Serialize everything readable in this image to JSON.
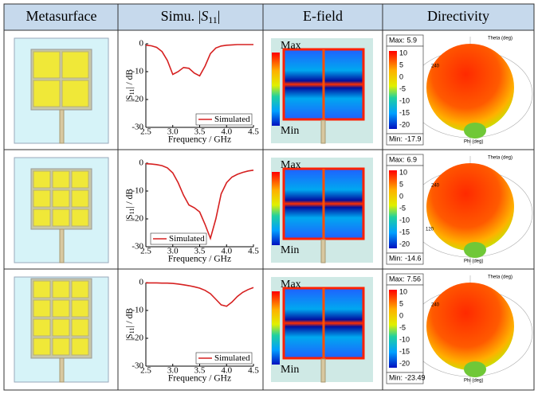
{
  "header": {
    "metasurface": "Metasurface",
    "s11": {
      "prefix": "Simu. |",
      "symbol": "S",
      "subscript": "11",
      "suffix": "|"
    },
    "efield": "E-field",
    "directivity": "Directivity"
  },
  "table": {
    "rows": [
      {
        "s11": {
          "type": "line",
          "x": [
            2.5,
            2.6,
            2.7,
            2.8,
            2.9,
            3.0,
            3.1,
            3.2,
            3.3,
            3.4,
            3.5,
            3.6,
            3.7,
            3.8,
            3.9,
            4.0,
            4.1,
            4.2,
            4.3,
            4.4,
            4.5
          ],
          "series": [
            {
              "name": "Simulated",
              "color": "#d62020",
              "values": [
                -0.5,
                -0.7,
                -1.3,
                -2.8,
                -6,
                -11,
                -10,
                -8.5,
                -8.8,
                -10.5,
                -11.5,
                -8,
                -3.5,
                -1.5,
                -0.8,
                -0.5,
                -0.4,
                -0.3,
                -0.3,
                -0.3,
                -0.3
              ]
            }
          ],
          "xlim": [
            2.5,
            4.5
          ],
          "ylim": [
            -30,
            0
          ],
          "xticks": [
            2.5,
            {
              "value": 3,
              "label": "3.0"
            },
            3.5,
            {
              "value": 4,
              "label": "4.0"
            },
            4.5
          ],
          "yticks": [
            0,
            -10,
            -20,
            -30
          ],
          "xlabel": "Frequency / GHz",
          "ylabel": {
            "prefix": "|S",
            "subscript": "11",
            "suffix": "| / dB"
          },
          "legend": "lower right"
        },
        "efield": {
          "max_label": "Max",
          "min_label": "Min"
        },
        "directivity": {
          "max_label": "Max:",
          "max": 5.9,
          "colorbar_ticks": [
            10,
            5,
            0,
            -5,
            -10,
            -15,
            -20
          ],
          "min_label": "Min:",
          "min": -17.9,
          "theta_label": "Theta (deg)",
          "phi_label": "Phi (deg)",
          "angle_labels": [
            "240"
          ]
        }
      },
      {
        "s11": {
          "type": "line",
          "x": [
            2.5,
            2.6,
            2.7,
            2.8,
            2.9,
            3.0,
            3.1,
            3.2,
            3.3,
            3.4,
            3.5,
            3.6,
            3.7,
            3.8,
            3.9,
            4.0,
            4.1,
            4.2,
            4.3,
            4.4,
            4.5
          ],
          "series": [
            {
              "name": "Simulated",
              "color": "#d62020",
              "values": [
                -0.2,
                -0.3,
                -0.5,
                -0.9,
                -1.7,
                -3.5,
                -7,
                -11.5,
                -15,
                -16,
                -17.5,
                -22,
                -27,
                -20,
                -11,
                -7,
                -5,
                -4,
                -3.3,
                -2.8,
                -2.5
              ]
            }
          ],
          "xlim": [
            2.5,
            4.5
          ],
          "ylim": [
            -30,
            0
          ],
          "xticks": [
            2.5,
            {
              "value": 3,
              "label": "3.0"
            },
            3.5,
            {
              "value": 4,
              "label": "4.0"
            },
            4.5
          ],
          "yticks": [
            0,
            -10,
            -20,
            -30
          ],
          "xlabel": "Frequency / GHz",
          "ylabel": {
            "prefix": "|S",
            "subscript": "11",
            "suffix": "| / dB"
          },
          "legend": "lower left"
        },
        "efield": {
          "max_label": "Max",
          "min_label": "Min"
        },
        "directivity": {
          "max_label": "Max:",
          "max": 6.9,
          "colorbar_ticks": [
            10,
            5,
            0,
            -5,
            -10,
            -15,
            -20
          ],
          "min_label": "Min:",
          "min": -14.6,
          "theta_label": "Theta (deg)",
          "phi_label": "Phi (deg)",
          "angle_labels": [
            "240",
            "120"
          ]
        }
      },
      {
        "s11": {
          "type": "line",
          "x": [
            2.5,
            2.6,
            2.7,
            2.8,
            2.9,
            3.0,
            3.1,
            3.2,
            3.3,
            3.4,
            3.5,
            3.6,
            3.7,
            3.8,
            3.9,
            4.0,
            4.1,
            4.2,
            4.3,
            4.4,
            4.5
          ],
          "series": [
            {
              "name": "Simulated",
              "color": "#d62020",
              "values": [
                -0.1,
                -0.1,
                -0.1,
                -0.2,
                -0.2,
                -0.3,
                -0.5,
                -0.8,
                -1.1,
                -1.5,
                -2,
                -2.8,
                -4,
                -6,
                -8,
                -8.5,
                -7,
                -5,
                -3.5,
                -2.5,
                -1.8
              ]
            }
          ],
          "xlim": [
            2.5,
            4.5
          ],
          "ylim": [
            -30,
            0
          ],
          "xticks": [
            2.5,
            {
              "value": 3,
              "label": "3.0"
            },
            3.5,
            {
              "value": 4,
              "label": "4.0"
            },
            4.5
          ],
          "yticks": [
            0,
            -10,
            -20,
            -30
          ],
          "xlabel": "Frequency / GHz",
          "ylabel": {
            "prefix": "|S",
            "subscript": "11",
            "suffix": "| / dB"
          },
          "legend": "lower right"
        },
        "efield": {
          "max_label": "Max",
          "min_label": "Min"
        },
        "directivity": {
          "max_label": "Max:",
          "max": 7.56,
          "colorbar_ticks": [
            10,
            5,
            0,
            -5,
            -10,
            -15,
            -20
          ],
          "min_label": "Min:",
          "min": -23.49,
          "theta_label": "Theta (deg)",
          "phi_label": "Phi (deg)",
          "angle_labels": [
            "240"
          ]
        }
      }
    ]
  }
}
